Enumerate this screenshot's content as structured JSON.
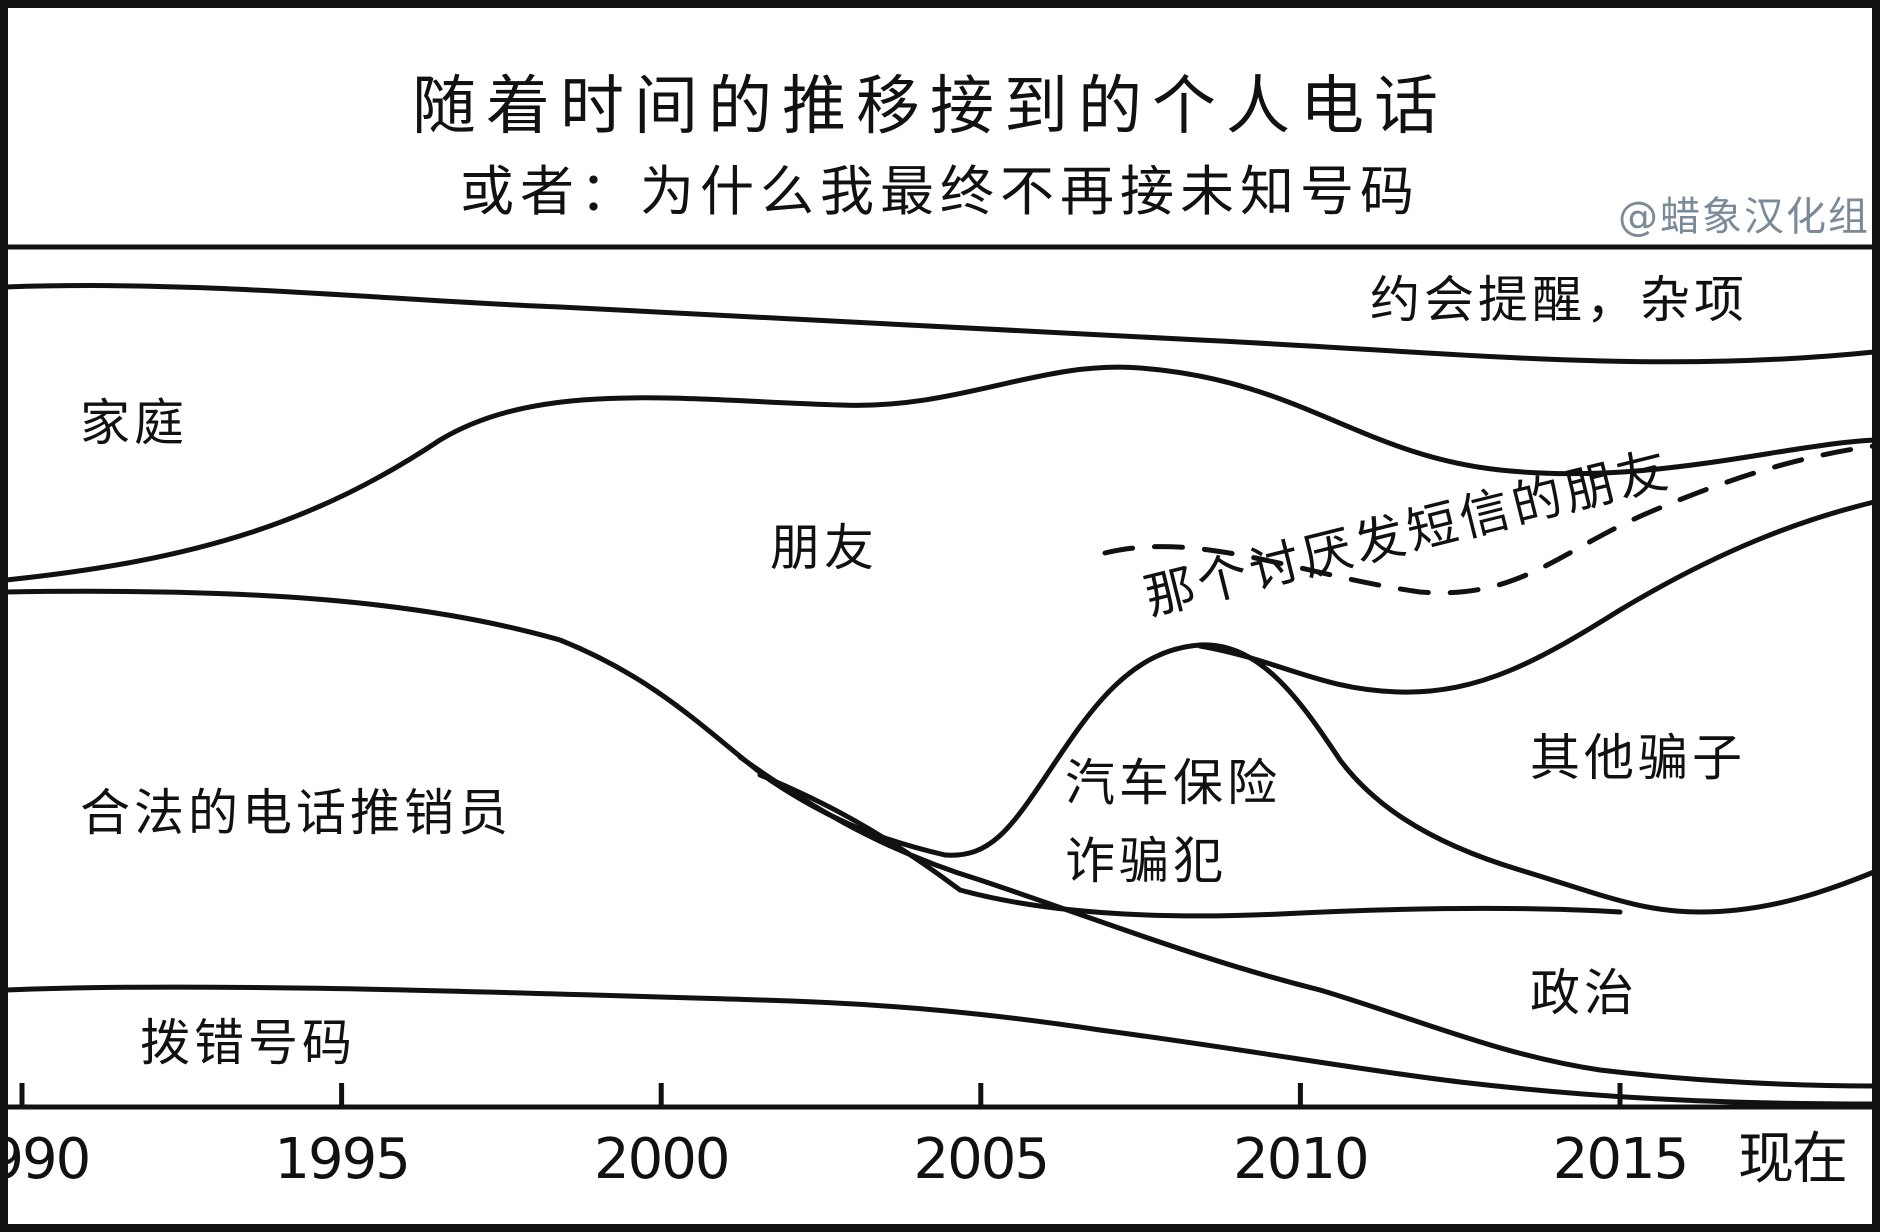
{
  "chart_data": {
    "type": "area",
    "title": "随着时间的推移接到的个人电话",
    "subtitle": "或者：为什么我最终不再接未知号码",
    "credit": "@蜡象汉化组",
    "x_tick_labels": [
      "1990",
      "1995",
      "2000",
      "2005",
      "2010",
      "2015",
      "现在"
    ],
    "x": [
      1990,
      1995,
      2000,
      2005,
      2010,
      2015,
      2019
    ],
    "categories": [
      "拨错号码",
      "政治",
      "合法的电话推销员",
      "汽车保险诈骗犯",
      "其他骗子",
      "那个讨厌发短信的朋友",
      "朋友",
      "家庭",
      "约会提醒，杂项"
    ],
    "boundaries": [
      {
        "above": "拨错号码",
        "values": [
          0.13,
          0.12,
          0.11,
          0.08,
          0.03,
          0.01,
          0.01
        ]
      },
      {
        "above": "政治",
        "values": [
          0.13,
          0.12,
          0.11,
          0.16,
          0.09,
          0.04,
          0.02
        ]
      },
      {
        "above": "合法的电话推销员",
        "values": [
          0.13,
          0.12,
          0.11,
          0.18,
          0.11,
          0.05,
          0.02
        ]
      },
      {
        "above": "汽车保险诈骗犯",
        "values": [
          0.51,
          0.49,
          0.42,
          0.2,
          0.16,
          0.16,
          0.19
        ]
      },
      {
        "above": "其他骗子",
        "values": [
          0.51,
          0.49,
          0.42,
          0.2,
          0.48,
          0.16,
          0.29
        ]
      },
      {
        "above": "那个讨厌发短信的朋友",
        "values": [
          0.51,
          0.49,
          0.42,
          0.2,
          0.48,
          0.44,
          0.65
        ]
      },
      {
        "above": "朋友",
        "values": [
          0.54,
          0.64,
          0.83,
          0.81,
          0.73,
          0.7,
          0.74
        ]
      },
      {
        "above": "家庭",
        "values": [
          0.96,
          0.95,
          0.93,
          0.91,
          0.89,
          0.88,
          0.89
        ]
      }
    ],
    "labels": {
      "appointments": "约会提醒，杂项",
      "family": "家庭",
      "friends": "朋友",
      "texting_friend": "那个讨厌发短信的朋友",
      "telemarketers": "合法的电话推销员",
      "car_insurance_line1": "汽车保险",
      "car_insurance_line2": "诈骗犯",
      "other_scammers": "其他骗子",
      "politics": "政治",
      "wrong_number": "拨错号码"
    },
    "legend": "none",
    "grid": false
  }
}
